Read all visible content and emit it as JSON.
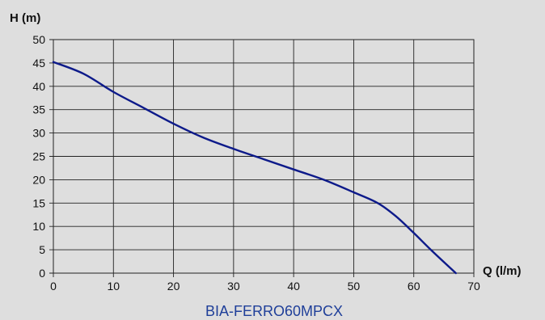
{
  "chart_data": {
    "type": "line",
    "ylabel": "H (m)",
    "xlabel": "Q (l/m)",
    "caption": "BIA-FERRO60MPCX",
    "xlim": [
      0,
      70
    ],
    "ylim": [
      0,
      50
    ],
    "xticks": [
      0,
      10,
      20,
      30,
      40,
      50,
      60,
      70
    ],
    "yticks": [
      0,
      5,
      10,
      15,
      20,
      25,
      30,
      35,
      40,
      45,
      50
    ],
    "grid": true,
    "series": [
      {
        "color": "#0d1a8a",
        "x": [
          0,
          5,
          10,
          15,
          20,
          25,
          30,
          35,
          40,
          45,
          50,
          54,
          57,
          60,
          63,
          67
        ],
        "y": [
          45.2,
          42.7,
          38.8,
          35.4,
          32.0,
          29.0,
          26.6,
          24.4,
          22.2,
          20.0,
          17.3,
          15.0,
          12.2,
          8.6,
          4.8,
          0
        ]
      }
    ]
  }
}
